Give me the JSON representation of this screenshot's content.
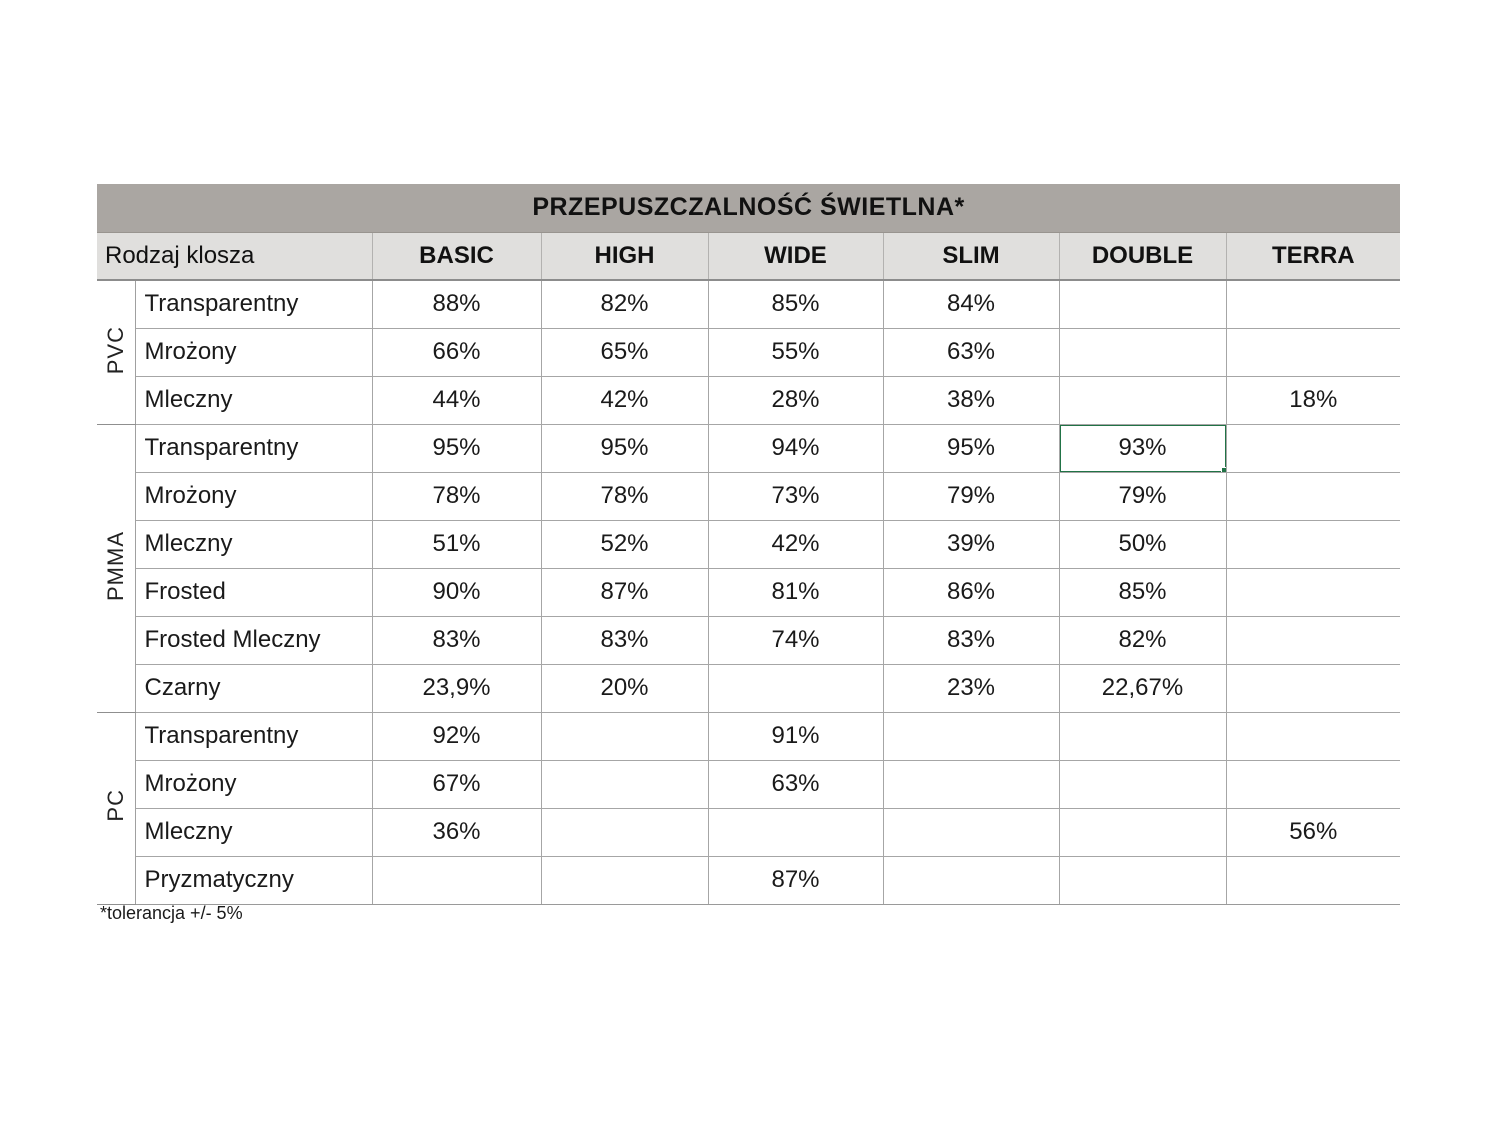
{
  "title": "PRZEPUSZCZALNOŚĆ ŚWIETLNA*",
  "header": {
    "row_label": "Rodzaj klosza",
    "columns": [
      "BASIC",
      "HIGH",
      "WIDE",
      "SLIM",
      "DOUBLE",
      "TERRA"
    ]
  },
  "groups": [
    {
      "name": "PVC",
      "rows": [
        {
          "label": "Transparentny",
          "values": [
            "88%",
            "82%",
            "85%",
            "84%",
            "",
            ""
          ]
        },
        {
          "label": "Mrożony",
          "values": [
            "66%",
            "65%",
            "55%",
            "63%",
            "",
            ""
          ]
        },
        {
          "label": "Mleczny",
          "values": [
            "44%",
            "42%",
            "28%",
            "38%",
            "",
            "18%"
          ]
        }
      ]
    },
    {
      "name": "PMMA",
      "rows": [
        {
          "label": "Transparentny",
          "values": [
            "95%",
            "95%",
            "94%",
            "95%",
            "93%",
            ""
          ]
        },
        {
          "label": "Mrożony",
          "values": [
            "78%",
            "78%",
            "73%",
            "79%",
            "79%",
            ""
          ]
        },
        {
          "label": "Mleczny",
          "values": [
            "51%",
            "52%",
            "42%",
            "39%",
            "50%",
            ""
          ]
        },
        {
          "label": "Frosted",
          "values": [
            "90%",
            "87%",
            "81%",
            "86%",
            "85%",
            ""
          ]
        },
        {
          "label": "Frosted Mleczny",
          "values": [
            "83%",
            "83%",
            "74%",
            "83%",
            "82%",
            ""
          ]
        },
        {
          "label": "Czarny",
          "values": [
            "23,9%",
            "20%",
            "",
            "23%",
            "22,67%",
            ""
          ]
        }
      ]
    },
    {
      "name": "PC",
      "rows": [
        {
          "label": "Transparentny",
          "values": [
            "92%",
            "",
            "91%",
            "",
            "",
            ""
          ]
        },
        {
          "label": "Mrożony",
          "values": [
            "67%",
            "",
            "63%",
            "",
            "",
            ""
          ]
        },
        {
          "label": "Mleczny",
          "values": [
            "36%",
            "",
            "",
            "",
            "",
            "56%"
          ]
        },
        {
          "label": "Pryzmatyczny",
          "values": [
            "",
            "",
            "87%",
            "",
            "",
            ""
          ]
        }
      ]
    }
  ],
  "selection": {
    "group_index": 1,
    "row_index": 0,
    "col_index": 4,
    "value": "93%"
  },
  "footnote": "*tolerancja +/- 5%",
  "colors": {
    "title_bg": "#aaa6a2",
    "header_bg": "#e0dfdd",
    "gridline": "#a6a6a6",
    "group_line": "#8f8f8f",
    "selection_green": "#217346",
    "text": "#1a1a1a"
  }
}
